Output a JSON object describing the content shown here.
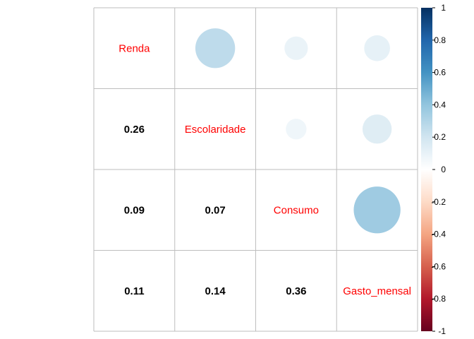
{
  "chart_data": {
    "type": "heatmap",
    "variables": [
      "Renda",
      "Escolaridade",
      "Consumo",
      "Gasto_mensal"
    ],
    "matrix": [
      [
        1.0,
        0.26,
        0.09,
        0.11
      ],
      [
        0.26,
        1.0,
        0.07,
        0.14
      ],
      [
        0.09,
        0.07,
        1.0,
        0.36
      ],
      [
        0.11,
        0.14,
        0.36,
        1.0
      ]
    ],
    "lower_triangle": "number",
    "upper_triangle": "circle",
    "diagonal": "label",
    "colorbar": {
      "range": [
        -1,
        1
      ],
      "ticks": [
        "1",
        "0.8",
        "0.6",
        "0.4",
        "0.2",
        "0",
        "-0.2",
        "-0.4",
        "-0.6",
        "-0.8",
        "-1"
      ],
      "colors": [
        "#67001f",
        "#b2182b",
        "#d6604d",
        "#f4a582",
        "#fddbc7",
        "#ffffff",
        "#d1e5f0",
        "#92c5de",
        "#4393c3",
        "#2166ac",
        "#053061"
      ]
    },
    "label_color": "#ff0000",
    "grid": true
  }
}
